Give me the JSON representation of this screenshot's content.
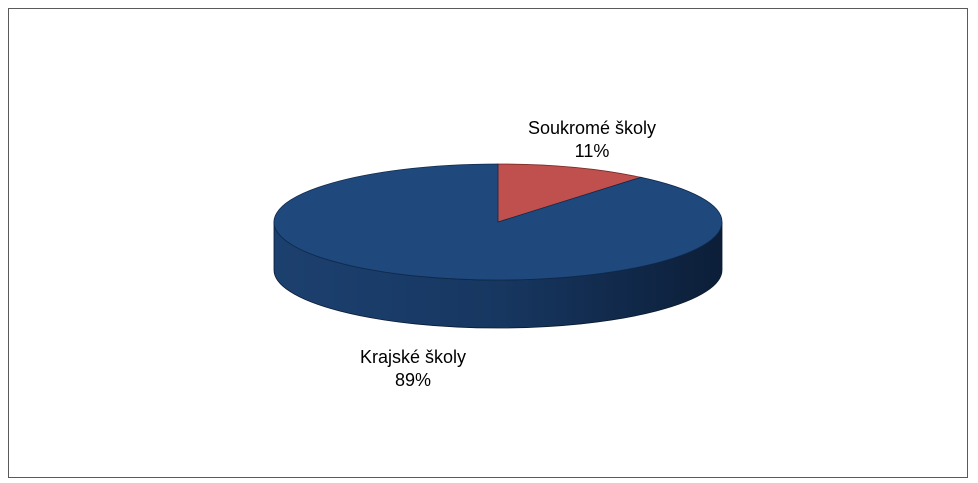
{
  "chart_data": {
    "type": "pie",
    "style": "3d",
    "slices": [
      {
        "name": "Soukromé školy",
        "value": 11,
        "value_label": "11%",
        "color": "#C0504D"
      },
      {
        "name": "Krajské školy",
        "value": 89,
        "value_label": "89%",
        "color": "#1F497D"
      }
    ],
    "legend": "none"
  }
}
